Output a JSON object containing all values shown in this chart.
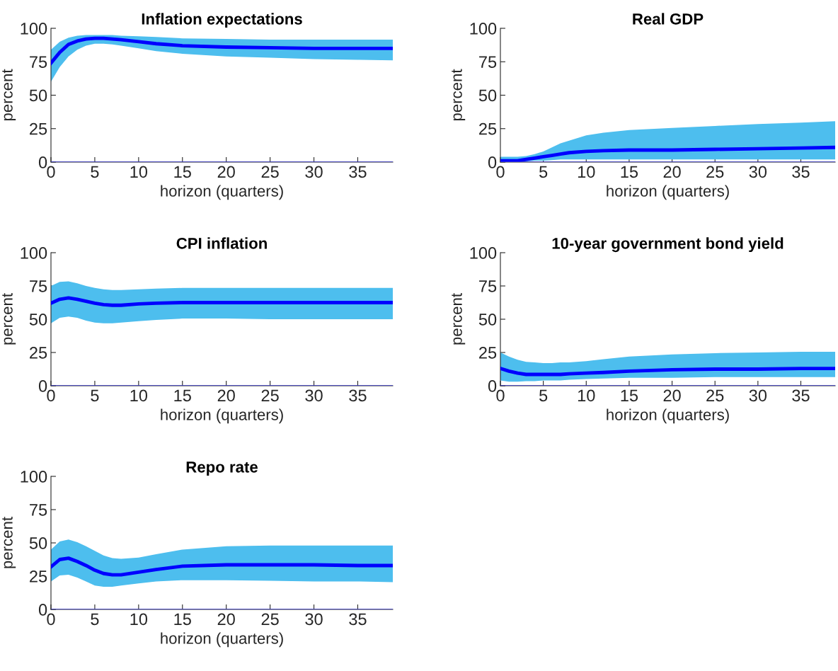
{
  "chart_data": [
    {
      "type": "line",
      "title": "Inflation expectations",
      "xlabel": "horizon (quarters)",
      "ylabel": "percent",
      "x": [
        0,
        1,
        2,
        3,
        4,
        5,
        6,
        7,
        8,
        10,
        12,
        15,
        20,
        25,
        30,
        35,
        39
      ],
      "xlim": [
        0,
        39
      ],
      "xticks": [
        0,
        5,
        10,
        15,
        20,
        25,
        30,
        35
      ],
      "ylim": [
        0,
        100
      ],
      "yticks": [
        0,
        25,
        50,
        75,
        100
      ],
      "grid": false,
      "legend": false,
      "ref_lines": [
        {
          "axis": "y",
          "value": 0,
          "color": "#3a3ad0"
        }
      ],
      "series": [
        {
          "color": "#0000ff",
          "values": [
            74,
            82,
            88,
            90.5,
            92,
            92.5,
            92.5,
            92,
            91.5,
            90,
            88.5,
            87,
            86,
            85.5,
            85,
            85,
            85
          ],
          "upper": [
            84,
            90,
            93,
            94.5,
            95,
            95,
            95,
            95,
            94.5,
            94,
            93.5,
            92.5,
            92,
            91.5,
            91.5,
            91.5,
            91.5
          ],
          "lower": [
            60,
            71,
            79,
            84,
            87,
            88.5,
            88.5,
            88,
            87,
            85,
            83,
            81,
            79,
            78,
            77,
            76.5,
            76
          ]
        }
      ]
    },
    {
      "type": "line",
      "title": "Real GDP",
      "xlabel": "horizon (quarters)",
      "ylabel": "percent",
      "x": [
        0,
        1,
        2,
        3,
        4,
        5,
        6,
        7,
        8,
        10,
        12,
        15,
        20,
        25,
        30,
        35,
        39
      ],
      "xlim": [
        0,
        39
      ],
      "xticks": [
        0,
        5,
        10,
        15,
        20,
        25,
        30,
        35
      ],
      "ylim": [
        0,
        100
      ],
      "yticks": [
        0,
        25,
        50,
        75,
        100
      ],
      "grid": false,
      "legend": false,
      "ref_lines": [
        {
          "axis": "y",
          "value": 0,
          "color": "#3a3ad0"
        }
      ],
      "series": [
        {
          "color": "#0000ff",
          "values": [
            1,
            1,
            1,
            2,
            3,
            4,
            5,
            6,
            7,
            8,
            8.5,
            9,
            9,
            9.5,
            10,
            10.5,
            11
          ],
          "upper": [
            4,
            4,
            4,
            4.5,
            6,
            8,
            11,
            14,
            16,
            20,
            22,
            24,
            25.5,
            27,
            28.5,
            29.5,
            30.5
          ],
          "lower": [
            0,
            0,
            0,
            0.5,
            1,
            1,
            1.5,
            2,
            2,
            2,
            2,
            2,
            2,
            2,
            2,
            2,
            2
          ]
        }
      ]
    },
    {
      "type": "line",
      "title": "CPI inflation",
      "xlabel": "horizon (quarters)",
      "ylabel": "percent",
      "x": [
        0,
        1,
        2,
        3,
        4,
        5,
        6,
        7,
        8,
        10,
        12,
        15,
        20,
        25,
        30,
        35,
        39
      ],
      "xlim": [
        0,
        39
      ],
      "xticks": [
        0,
        5,
        10,
        15,
        20,
        25,
        30,
        35
      ],
      "ylim": [
        0,
        100
      ],
      "yticks": [
        0,
        25,
        50,
        75,
        100
      ],
      "grid": false,
      "legend": false,
      "ref_lines": [
        {
          "axis": "y",
          "value": 0,
          "color": "#3a3ad0"
        }
      ],
      "series": [
        {
          "color": "#0000ff",
          "values": [
            62,
            65,
            66,
            65,
            63.5,
            62,
            61,
            60.5,
            60.5,
            61.5,
            62,
            62.5,
            62.5,
            62.5,
            62.5,
            62.5,
            62.5
          ],
          "upper": [
            75,
            78,
            78.5,
            77,
            75,
            73.5,
            72.5,
            72,
            72,
            72.5,
            73,
            73.5,
            73.5,
            73.5,
            73.5,
            73.5,
            73.5
          ],
          "lower": [
            47,
            51,
            52,
            51,
            49,
            47.5,
            47,
            47,
            47.5,
            48.5,
            49.5,
            50.5,
            50.5,
            50,
            50,
            50,
            50
          ]
        }
      ]
    },
    {
      "type": "line",
      "title": "10-year government bond yield",
      "xlabel": "horizon (quarters)",
      "ylabel": "percent",
      "x": [
        0,
        1,
        2,
        3,
        4,
        5,
        6,
        7,
        8,
        10,
        12,
        15,
        20,
        25,
        30,
        35,
        39
      ],
      "xlim": [
        0,
        39
      ],
      "xticks": [
        0,
        5,
        10,
        15,
        20,
        25,
        30,
        35
      ],
      "ylim": [
        0,
        100
      ],
      "yticks": [
        0,
        25,
        50,
        75,
        100
      ],
      "grid": false,
      "legend": false,
      "ref_lines": [
        {
          "axis": "y",
          "value": 0,
          "color": "#3a3ad0"
        }
      ],
      "series": [
        {
          "color": "#0000ff",
          "values": [
            13,
            11,
            9.5,
            8.5,
            8.5,
            8.5,
            8.5,
            8.5,
            9,
            9.5,
            10,
            11,
            12,
            12.5,
            12.5,
            13,
            13
          ],
          "upper": [
            25,
            22,
            19.5,
            18,
            17.5,
            17,
            17,
            17.5,
            17.5,
            18.5,
            20,
            22,
            23.5,
            24.5,
            25,
            25.5,
            25.5
          ],
          "lower": [
            4,
            3,
            3,
            3.5,
            3.5,
            4,
            4,
            4,
            4.5,
            5,
            5.5,
            6,
            6,
            6.5,
            6.5,
            6.5,
            6.5
          ]
        }
      ]
    },
    {
      "type": "line",
      "title": "Repo rate",
      "xlabel": "horizon (quarters)",
      "ylabel": "percent",
      "x": [
        0,
        1,
        2,
        3,
        4,
        5,
        6,
        7,
        8,
        10,
        12,
        15,
        20,
        25,
        30,
        35,
        39
      ],
      "xlim": [
        0,
        39
      ],
      "xticks": [
        0,
        5,
        10,
        15,
        20,
        25,
        30,
        35
      ],
      "ylim": [
        0,
        100
      ],
      "yticks": [
        0,
        25,
        50,
        75,
        100
      ],
      "grid": false,
      "legend": false,
      "ref_lines": [
        {
          "axis": "y",
          "value": 0,
          "color": "#3a3ad0"
        }
      ],
      "series": [
        {
          "color": "#0000ff",
          "values": [
            32,
            37.5,
            38.5,
            36,
            33,
            29.5,
            27,
            26,
            26,
            28,
            30,
            32.5,
            33.5,
            33.5,
            33.5,
            33,
            33
          ],
          "upper": [
            45,
            51,
            52.5,
            50.5,
            47.5,
            44,
            40.5,
            38.5,
            38,
            39,
            41.5,
            45,
            47.5,
            48,
            48,
            48,
            48
          ],
          "lower": [
            21,
            25.5,
            26,
            24,
            21,
            18,
            17,
            17,
            18,
            19.5,
            21,
            22,
            22,
            21.5,
            21,
            21,
            20.5
          ]
        }
      ]
    }
  ]
}
